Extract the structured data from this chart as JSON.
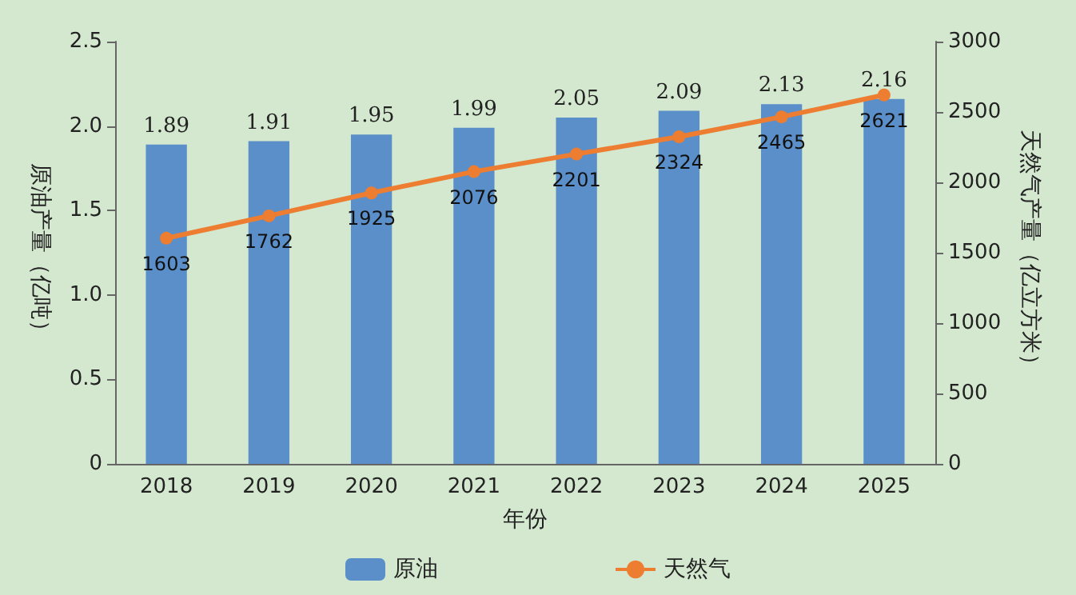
{
  "chart_data": {
    "type": "bar",
    "xlabel": "年份",
    "ylabel": "原油产量（亿吨）",
    "y2label": "天然气产量（亿立方米）",
    "categories": [
      "2018",
      "2019",
      "2020",
      "2021",
      "2022",
      "2023",
      "2024",
      "2025"
    ],
    "series": [
      {
        "name": "原油",
        "color": "#5b8fc9",
        "values": [
          1.89,
          1.91,
          1.95,
          1.99,
          2.05,
          2.09,
          2.13,
          2.16
        ]
      },
      {
        "name": "天然气",
        "type": "line",
        "axis": "y2",
        "color": "#ed7d31",
        "marker": "circle",
        "values": [
          1603,
          1762,
          1925,
          2076,
          2201,
          2324,
          2465,
          2621
        ]
      }
    ],
    "ylim": [
      0,
      2.5
    ],
    "yticks": [
      0,
      {
        "value": 0.5,
        "label": "0.5"
      },
      {
        "value": 1,
        "label": "1.0"
      },
      {
        "value": 1.5,
        "label": "1.5"
      },
      {
        "value": 2,
        "label": "2.0"
      },
      {
        "value": 2.5,
        "label": "2.5"
      }
    ],
    "y2lim": [
      0,
      3000
    ],
    "y2ticks": [
      0,
      500,
      1000,
      1500,
      2000,
      2500,
      3000
    ],
    "data_labels": true,
    "legend": "bottom",
    "grid": false
  }
}
